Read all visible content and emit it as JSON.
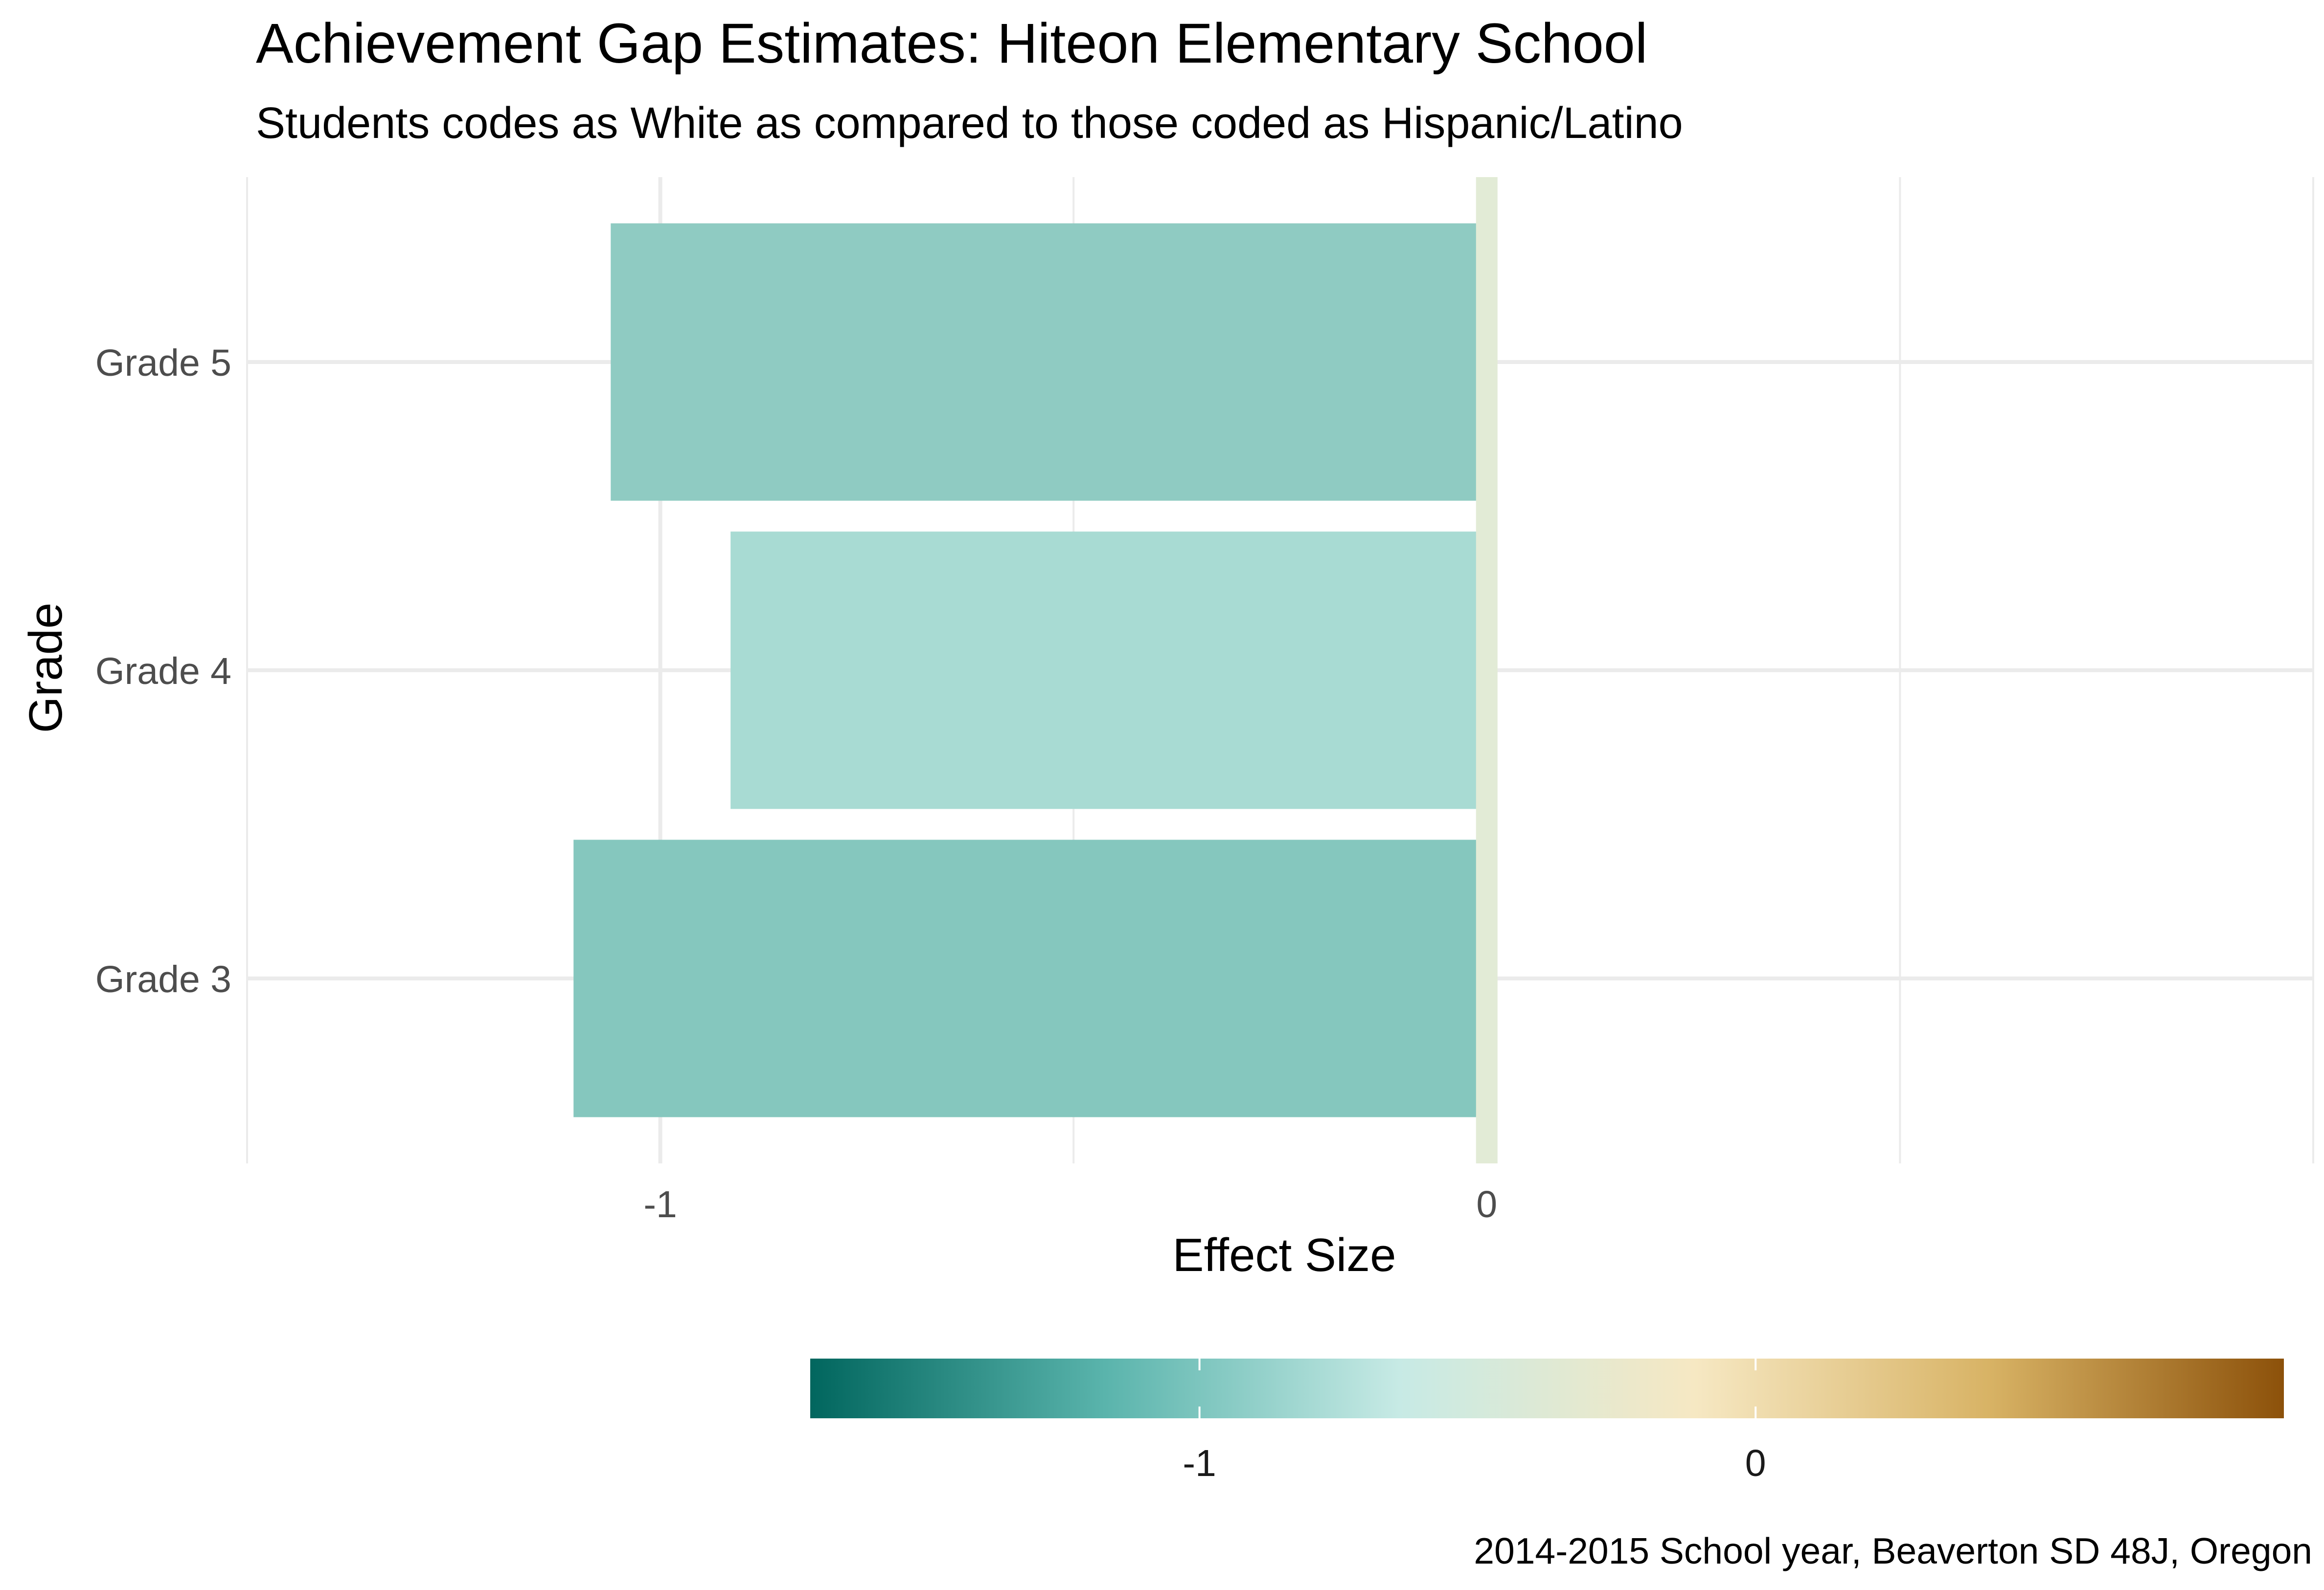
{
  "chart_data": {
    "type": "bar",
    "orientation": "horizontal",
    "title": "Achievement Gap Estimates: Hiteon Elementary School",
    "subtitle": "Students codes as White as compared to those coded as Hispanic/Latino",
    "caption": "2014-2015 School year, Beaverton SD 48J, Oregon",
    "xlabel": "Effect Size",
    "ylabel": "Grade",
    "xlim": [
      -1.5,
      1.0
    ],
    "x_ticks": [
      -1,
      0
    ],
    "x_tick_labels": [
      "-1",
      "0"
    ],
    "categories": [
      "Grade 3",
      "Grade 4",
      "Grade 5"
    ],
    "values": [
      -1.105,
      -0.915,
      -1.06
    ],
    "bar_colors": [
      "#85c7be",
      "#a8dbd3",
      "#8fcbc2"
    ],
    "reference_line": {
      "x": 0,
      "color": "#e2ebd6"
    },
    "grid": true,
    "legend": {
      "position": "bottom",
      "type": "colorbar",
      "range": [
        -1.7,
        0.95
      ],
      "ticks": [
        -1,
        0
      ],
      "tick_labels": [
        "-1",
        "0"
      ],
      "colors": [
        "#01665e",
        "#5ab4ac",
        "#c7eae5",
        "#f6e8c3",
        "#d8b365",
        "#8c510a"
      ]
    }
  }
}
